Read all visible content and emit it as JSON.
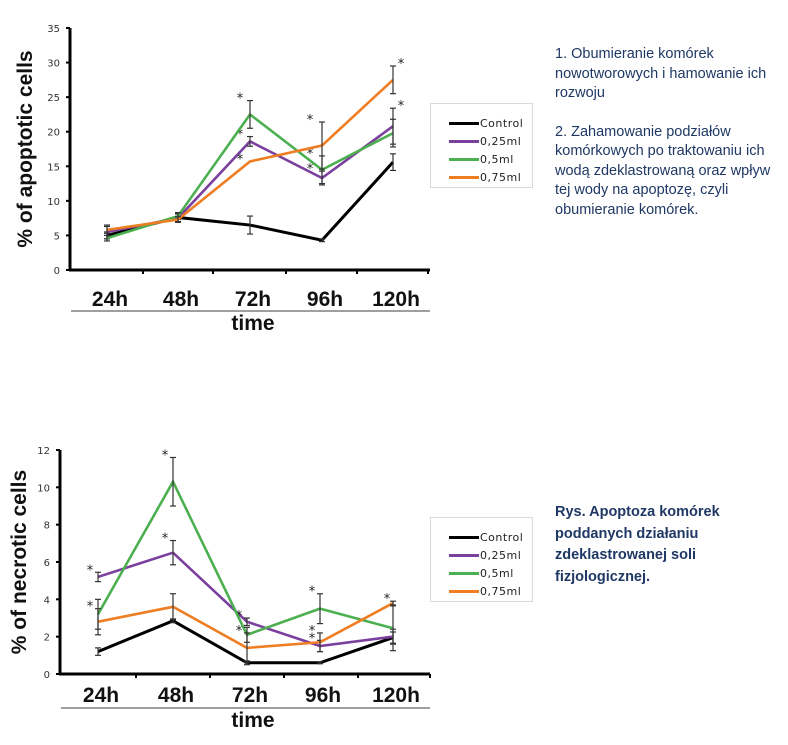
{
  "chart_data": [
    {
      "type": "line",
      "title": "",
      "xlabel": "time",
      "ylabel": "% of apoptotic cells",
      "categories": [
        "24h",
        "48h",
        "72h",
        "96h",
        "120h"
      ],
      "ylim": [
        0,
        35
      ],
      "yticks": [
        0,
        5,
        10,
        15,
        20,
        25,
        30,
        35
      ],
      "grid": false,
      "legend_position": "right",
      "series": [
        {
          "name": "Control",
          "color": "#000000",
          "values": [
            5.0,
            7.6,
            6.5,
            4.3,
            15.6
          ],
          "errors": [
            0.5,
            0.6,
            1.3,
            0.2,
            1.2
          ],
          "significant": [
            false,
            false,
            false,
            false,
            false
          ]
        },
        {
          "name": "0,25ml",
          "color": "#7b3f9e",
          "values": [
            5.5,
            7.5,
            18.6,
            13.3,
            20.8
          ],
          "errors": [
            1.0,
            0.6,
            0.7,
            1.0,
            2.6
          ],
          "significant": [
            false,
            false,
            true,
            true,
            true
          ]
        },
        {
          "name": "0,5ml",
          "color": "#4caf50",
          "values": [
            4.6,
            7.8,
            22.5,
            14.5,
            19.8
          ],
          "errors": [
            0.4,
            0.5,
            2.0,
            2.0,
            2.0
          ],
          "significant": [
            false,
            false,
            true,
            true,
            false
          ]
        },
        {
          "name": "0,75ml",
          "color": "#ef7d22",
          "values": [
            5.8,
            7.3,
            15.7,
            18.0,
            27.5
          ],
          "errors": [
            0.5,
            0.4,
            0,
            3.4,
            2.0
          ],
          "significant": [
            false,
            false,
            true,
            true,
            true
          ]
        }
      ]
    },
    {
      "type": "line",
      "title": "",
      "xlabel": "time",
      "ylabel": "% of necrotic cells",
      "categories": [
        "24h",
        "48h",
        "72h",
        "96h",
        "120h"
      ],
      "ylim": [
        0,
        12
      ],
      "yticks": [
        0,
        2,
        4,
        6,
        8,
        10,
        12
      ],
      "grid": false,
      "legend_position": "right",
      "series": [
        {
          "name": "Control",
          "color": "#000000",
          "values": [
            1.2,
            2.85,
            0.6,
            0.6,
            1.95
          ],
          "errors": [
            0.2,
            0.1,
            0.1,
            0.05,
            0.3
          ],
          "significant": [
            false,
            false,
            false,
            false,
            false
          ]
        },
        {
          "name": "0,25ml",
          "color": "#7b3f9e",
          "values": [
            5.2,
            6.5,
            2.8,
            1.5,
            2.0
          ],
          "errors": [
            0.25,
            0.65,
            0.2,
            0.3,
            0.4
          ],
          "significant": [
            true,
            true,
            true,
            true,
            false
          ]
        },
        {
          "name": "0,5ml",
          "color": "#4caf50",
          "values": [
            3.2,
            10.3,
            2.1,
            3.5,
            2.45
          ],
          "errors": [
            0.8,
            1.3,
            0.4,
            0.8,
            1.2
          ],
          "significant": [
            false,
            true,
            false,
            true,
            false
          ]
        },
        {
          "name": "0,75ml",
          "color": "#ef7d22",
          "values": [
            2.8,
            3.6,
            1.4,
            1.7,
            3.8
          ],
          "errors": [
            0.7,
            0.7,
            0.8,
            0.5,
            0.1
          ],
          "significant": [
            true,
            false,
            true,
            true,
            true
          ]
        }
      ]
    }
  ],
  "legend": {
    "items": [
      {
        "label": "Control",
        "color": "#000000"
      },
      {
        "label": "0,25ml",
        "color": "#7b3f9e"
      },
      {
        "label": "0,5ml",
        "color": "#4caf50"
      },
      {
        "label": "0,75ml",
        "color": "#ef7d22"
      }
    ]
  },
  "notes": {
    "point1": "1. Obumieranie komórek nowotworowych i hamowanie ich rozwoju",
    "point2": "2. Zahamowanie podziałów komórkowych po traktowaniu ich wodą zdeklastrowaną oraz wpływ tej wody na apoptozę, czyli obumieranie komórek."
  },
  "caption": "Rys. Apoptoza komórek poddanych działaniu zdeklastrowanej soli fizjologicznej.",
  "significance_marker": "*"
}
